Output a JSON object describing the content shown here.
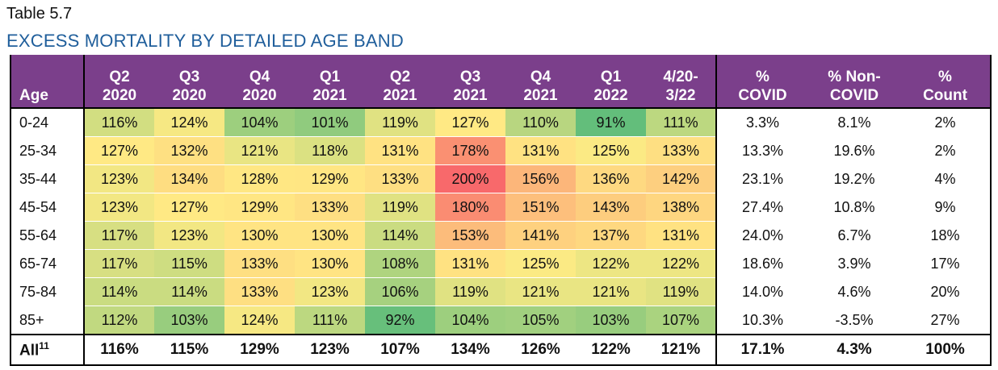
{
  "caption": "Table 5.7",
  "title": "EXCESS MORTALITY BY DETAILED AGE BAND",
  "chart_data": {
    "type": "table",
    "columns": [
      {
        "key": "age",
        "label": [
          "",
          "Age"
        ]
      },
      {
        "key": "q2_2020",
        "label": [
          "Q2",
          "2020"
        ]
      },
      {
        "key": "q3_2020",
        "label": [
          "Q3",
          "2020"
        ]
      },
      {
        "key": "q4_2020",
        "label": [
          "Q4",
          "2020"
        ]
      },
      {
        "key": "q1_2021",
        "label": [
          "Q1",
          "2021"
        ]
      },
      {
        "key": "q2_2021",
        "label": [
          "Q2",
          "2021"
        ]
      },
      {
        "key": "q3_2021",
        "label": [
          "Q3",
          "2021"
        ]
      },
      {
        "key": "q4_2021",
        "label": [
          "Q4",
          "2021"
        ]
      },
      {
        "key": "q1_2022",
        "label": [
          "Q1",
          "2022"
        ]
      },
      {
        "key": "total",
        "label": [
          "4/20-",
          "3/22"
        ]
      },
      {
        "key": "pct_covid",
        "label": [
          "%",
          "COVID"
        ]
      },
      {
        "key": "pct_noncovid",
        "label": [
          "% Non-",
          "COVID"
        ]
      },
      {
        "key": "pct_count",
        "label": [
          "%",
          "Count"
        ]
      }
    ],
    "rows": [
      {
        "age": "0-24",
        "values": [
          "116%",
          "124%",
          "104%",
          "101%",
          "119%",
          "127%",
          "110%",
          "91%",
          "111%"
        ],
        "pct_covid": "3.3%",
        "pct_noncovid": "8.1%",
        "pct_count": "2%"
      },
      {
        "age": "25-34",
        "values": [
          "127%",
          "132%",
          "121%",
          "118%",
          "131%",
          "178%",
          "131%",
          "125%",
          "133%"
        ],
        "pct_covid": "13.3%",
        "pct_noncovid": "19.6%",
        "pct_count": "2%"
      },
      {
        "age": "35-44",
        "values": [
          "123%",
          "134%",
          "128%",
          "129%",
          "133%",
          "200%",
          "156%",
          "136%",
          "142%"
        ],
        "pct_covid": "23.1%",
        "pct_noncovid": "19.2%",
        "pct_count": "4%"
      },
      {
        "age": "45-54",
        "values": [
          "123%",
          "127%",
          "129%",
          "133%",
          "119%",
          "180%",
          "151%",
          "143%",
          "138%"
        ],
        "pct_covid": "27.4%",
        "pct_noncovid": "10.8%",
        "pct_count": "9%"
      },
      {
        "age": "55-64",
        "values": [
          "117%",
          "123%",
          "130%",
          "130%",
          "114%",
          "153%",
          "141%",
          "137%",
          "131%"
        ],
        "pct_covid": "24.0%",
        "pct_noncovid": "6.7%",
        "pct_count": "18%"
      },
      {
        "age": "65-74",
        "values": [
          "117%",
          "115%",
          "133%",
          "130%",
          "108%",
          "131%",
          "125%",
          "122%",
          "122%"
        ],
        "pct_covid": "18.6%",
        "pct_noncovid": "3.9%",
        "pct_count": "17%"
      },
      {
        "age": "75-84",
        "values": [
          "114%",
          "114%",
          "133%",
          "123%",
          "106%",
          "119%",
          "121%",
          "121%",
          "119%"
        ],
        "pct_covid": "14.0%",
        "pct_noncovid": "4.6%",
        "pct_count": "20%"
      },
      {
        "age": "85+",
        "values": [
          "112%",
          "103%",
          "124%",
          "111%",
          "92%",
          "104%",
          "105%",
          "103%",
          "107%"
        ],
        "pct_covid": "10.3%",
        "pct_noncovid": "-3.5%",
        "pct_count": "27%"
      }
    ],
    "total_row": {
      "age": "All",
      "age_sup": "11",
      "values": [
        "116%",
        "115%",
        "129%",
        "123%",
        "107%",
        "134%",
        "126%",
        "122%",
        "121%"
      ],
      "pct_covid": "17.1%",
      "pct_noncovid": "4.3%",
      "pct_count": "100%"
    },
    "color_scale": {
      "low": "#63be7b",
      "mid": "#ffeb84",
      "high": "#f8696b",
      "min": 91,
      "mid_value": 126,
      "max": 200
    },
    "header_color": "#7b3f8b"
  }
}
